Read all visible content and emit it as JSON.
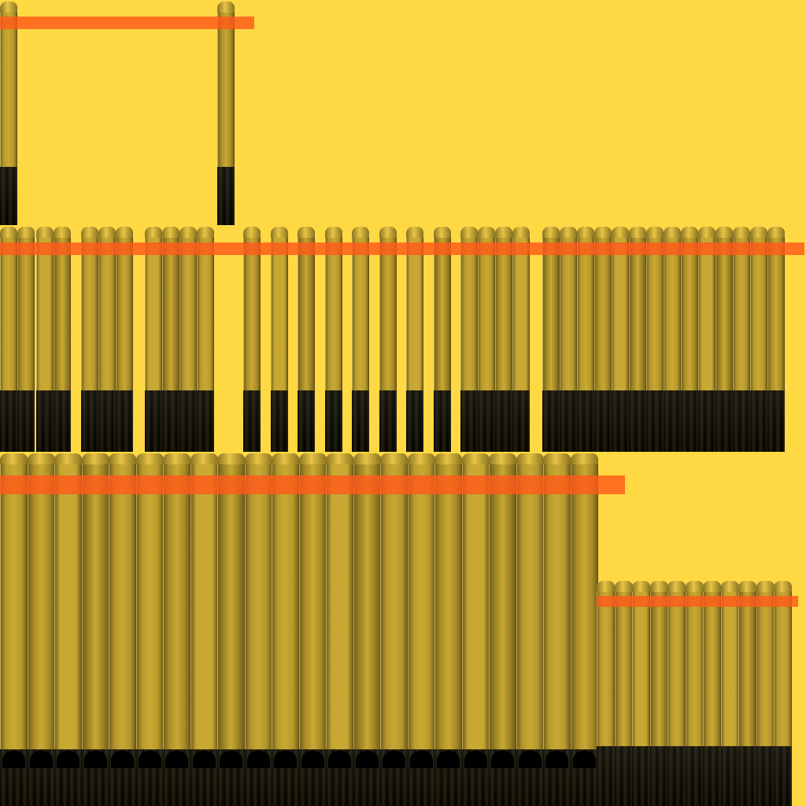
{
  "colors": {
    "background": "#FFD944",
    "stripe": "#FF5A1A",
    "column_light": "#C9A833",
    "column_dark": "#6E5A18",
    "base": "#000000"
  },
  "groups": [
    {
      "id": "frame",
      "columns": 2
    },
    {
      "id": "row-2",
      "columns": 35
    },
    {
      "id": "row-3",
      "columns": 22
    },
    {
      "id": "row-4",
      "columns": 11
    }
  ],
  "stripes": [
    {
      "id": "stripe-1"
    },
    {
      "id": "stripe-2"
    },
    {
      "id": "stripe-3"
    },
    {
      "id": "stripe-4"
    }
  ]
}
